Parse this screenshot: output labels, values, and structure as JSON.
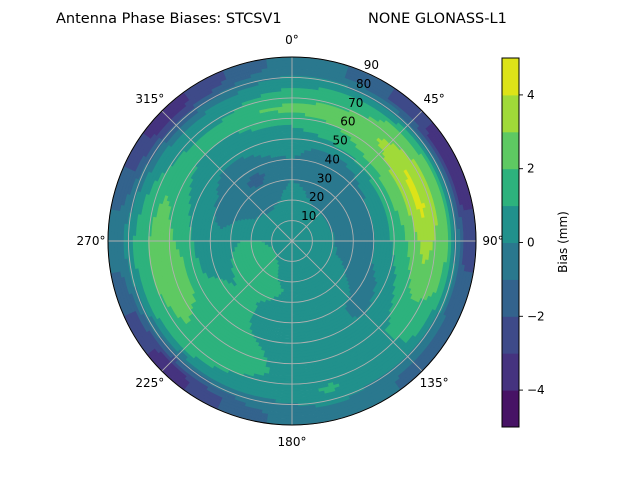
{
  "chart_data": {
    "type": "heatmap",
    "subtype": "polar-filled-contour",
    "title_left": "Antenna Phase Biases: STCSV1",
    "title_right": "NONE GLONASS-L1",
    "angular_axis": {
      "zero_location": "top",
      "direction": "clockwise",
      "tick_labels": [
        "0°",
        "45°",
        "90°",
        "135°",
        "180°",
        "225°",
        "270°",
        "315°"
      ],
      "tick_values": [
        0,
        45,
        90,
        135,
        180,
        225,
        270,
        315
      ]
    },
    "radial_axis": {
      "range": [
        0,
        90
      ],
      "tick_values": [
        10,
        20,
        30,
        40,
        50,
        60,
        70,
        80,
        90
      ],
      "tick_labels": [
        "10",
        "20",
        "30",
        "40",
        "50",
        "60",
        "70",
        "80",
        "90"
      ]
    },
    "grid": true,
    "colorbar": {
      "label": "Bias (mm)",
      "levels": [
        -5,
        -4,
        -3,
        -2,
        -1,
        0,
        1,
        2,
        3,
        4,
        5
      ],
      "tick_values": [
        -4,
        -2,
        0,
        2,
        4
      ],
      "tick_labels": [
        "−4",
        "−2",
        "0",
        "2",
        "4"
      ],
      "colors": [
        "#471365",
        "#45337f",
        "#3e4a89",
        "#33638d",
        "#2a788e",
        "#21918c",
        "#2db27d",
        "#5ec962",
        "#a0da39",
        "#dde318"
      ],
      "colormap": "viridis",
      "placement": "right"
    },
    "azimuth_deg": [
      0,
      15,
      30,
      45,
      60,
      75,
      90,
      105,
      120,
      135,
      150,
      165,
      180,
      195,
      210,
      225,
      240,
      255,
      270,
      285,
      300,
      315,
      330,
      345
    ],
    "zenith_deg": [
      5,
      15,
      25,
      35,
      45,
      55,
      65,
      75,
      85
    ],
    "values_mm": [
      [
        0.5,
        0.5,
        0.5,
        0.5,
        0.5,
        0.5,
        0.5,
        0.5,
        0.5,
        0.5,
        0.5,
        0.5,
        0.5,
        0.5,
        0.5,
        0.5,
        0.5,
        0.5,
        0.5,
        0.5,
        0.5,
        0.5,
        0.5,
        0.5
      ],
      [
        0.4,
        0.4,
        0.3,
        0.3,
        0.3,
        0.4,
        0.5,
        0.5,
        0.5,
        0.5,
        0.5,
        0.5,
        0.6,
        0.7,
        1.1,
        1.3,
        1.4,
        1.3,
        1.0,
        0.6,
        0.4,
        0.3,
        0.3,
        0.4
      ],
      [
        0.3,
        0.0,
        -0.3,
        -0.4,
        -0.4,
        -0.4,
        -0.3,
        -0.2,
        0.3,
        0.5,
        0.5,
        0.6,
        0.8,
        1.1,
        1.3,
        1.5,
        1.5,
        1.4,
        1.0,
        0.4,
        -0.2,
        -0.5,
        -0.6,
        -0.2
      ],
      [
        -0.3,
        -0.5,
        -0.8,
        -0.6,
        -0.5,
        -0.6,
        -0.7,
        -0.5,
        -0.3,
        0.3,
        0.5,
        0.5,
        0.6,
        0.8,
        1.0,
        1.1,
        0.9,
        0.7,
        0.5,
        -0.2,
        -0.5,
        -0.8,
        -1.3,
        -0.8
      ],
      [
        0.3,
        -0.2,
        -0.3,
        0.1,
        0.3,
        0.5,
        0.5,
        0.3,
        -0.2,
        -0.4,
        0.3,
        0.5,
        0.5,
        0.6,
        1.1,
        1.3,
        1.2,
        0.8,
        0.5,
        0.3,
        0.2,
        -0.3,
        -0.2,
        0.2
      ],
      [
        0.8,
        1.3,
        1.8,
        2.2,
        2.5,
        2.3,
        1.8,
        1.3,
        0.8,
        0.3,
        0.5,
        0.5,
        0.6,
        1.0,
        1.3,
        1.6,
        2.0,
        2.2,
        1.8,
        1.3,
        0.8,
        0.6,
        0.6,
        0.8
      ],
      [
        2.3,
        2.5,
        2.6,
        3.3,
        4.2,
        4.3,
        3.5,
        2.8,
        1.8,
        1.0,
        0.6,
        0.5,
        0.6,
        1.2,
        1.6,
        1.8,
        2.3,
        2.6,
        2.6,
        2.3,
        1.6,
        1.3,
        1.3,
        2.0
      ],
      [
        1.0,
        1.2,
        1.5,
        2.2,
        2.5,
        2.6,
        2.5,
        2.2,
        1.6,
        0.8,
        0.5,
        1.2,
        0.6,
        0.5,
        0.8,
        1.0,
        1.3,
        1.6,
        1.5,
        1.0,
        0.5,
        0.0,
        0.3,
        0.6
      ],
      [
        -0.5,
        -0.8,
        -1.8,
        -2.8,
        -3.5,
        -3.3,
        -2.5,
        -1.8,
        -1.5,
        -1.3,
        -0.8,
        -0.3,
        -0.6,
        -1.3,
        -2.6,
        -3.5,
        -2.5,
        -1.3,
        -0.3,
        -1.3,
        -2.5,
        -3.6,
        -2.6,
        -1.4
      ]
    ]
  }
}
